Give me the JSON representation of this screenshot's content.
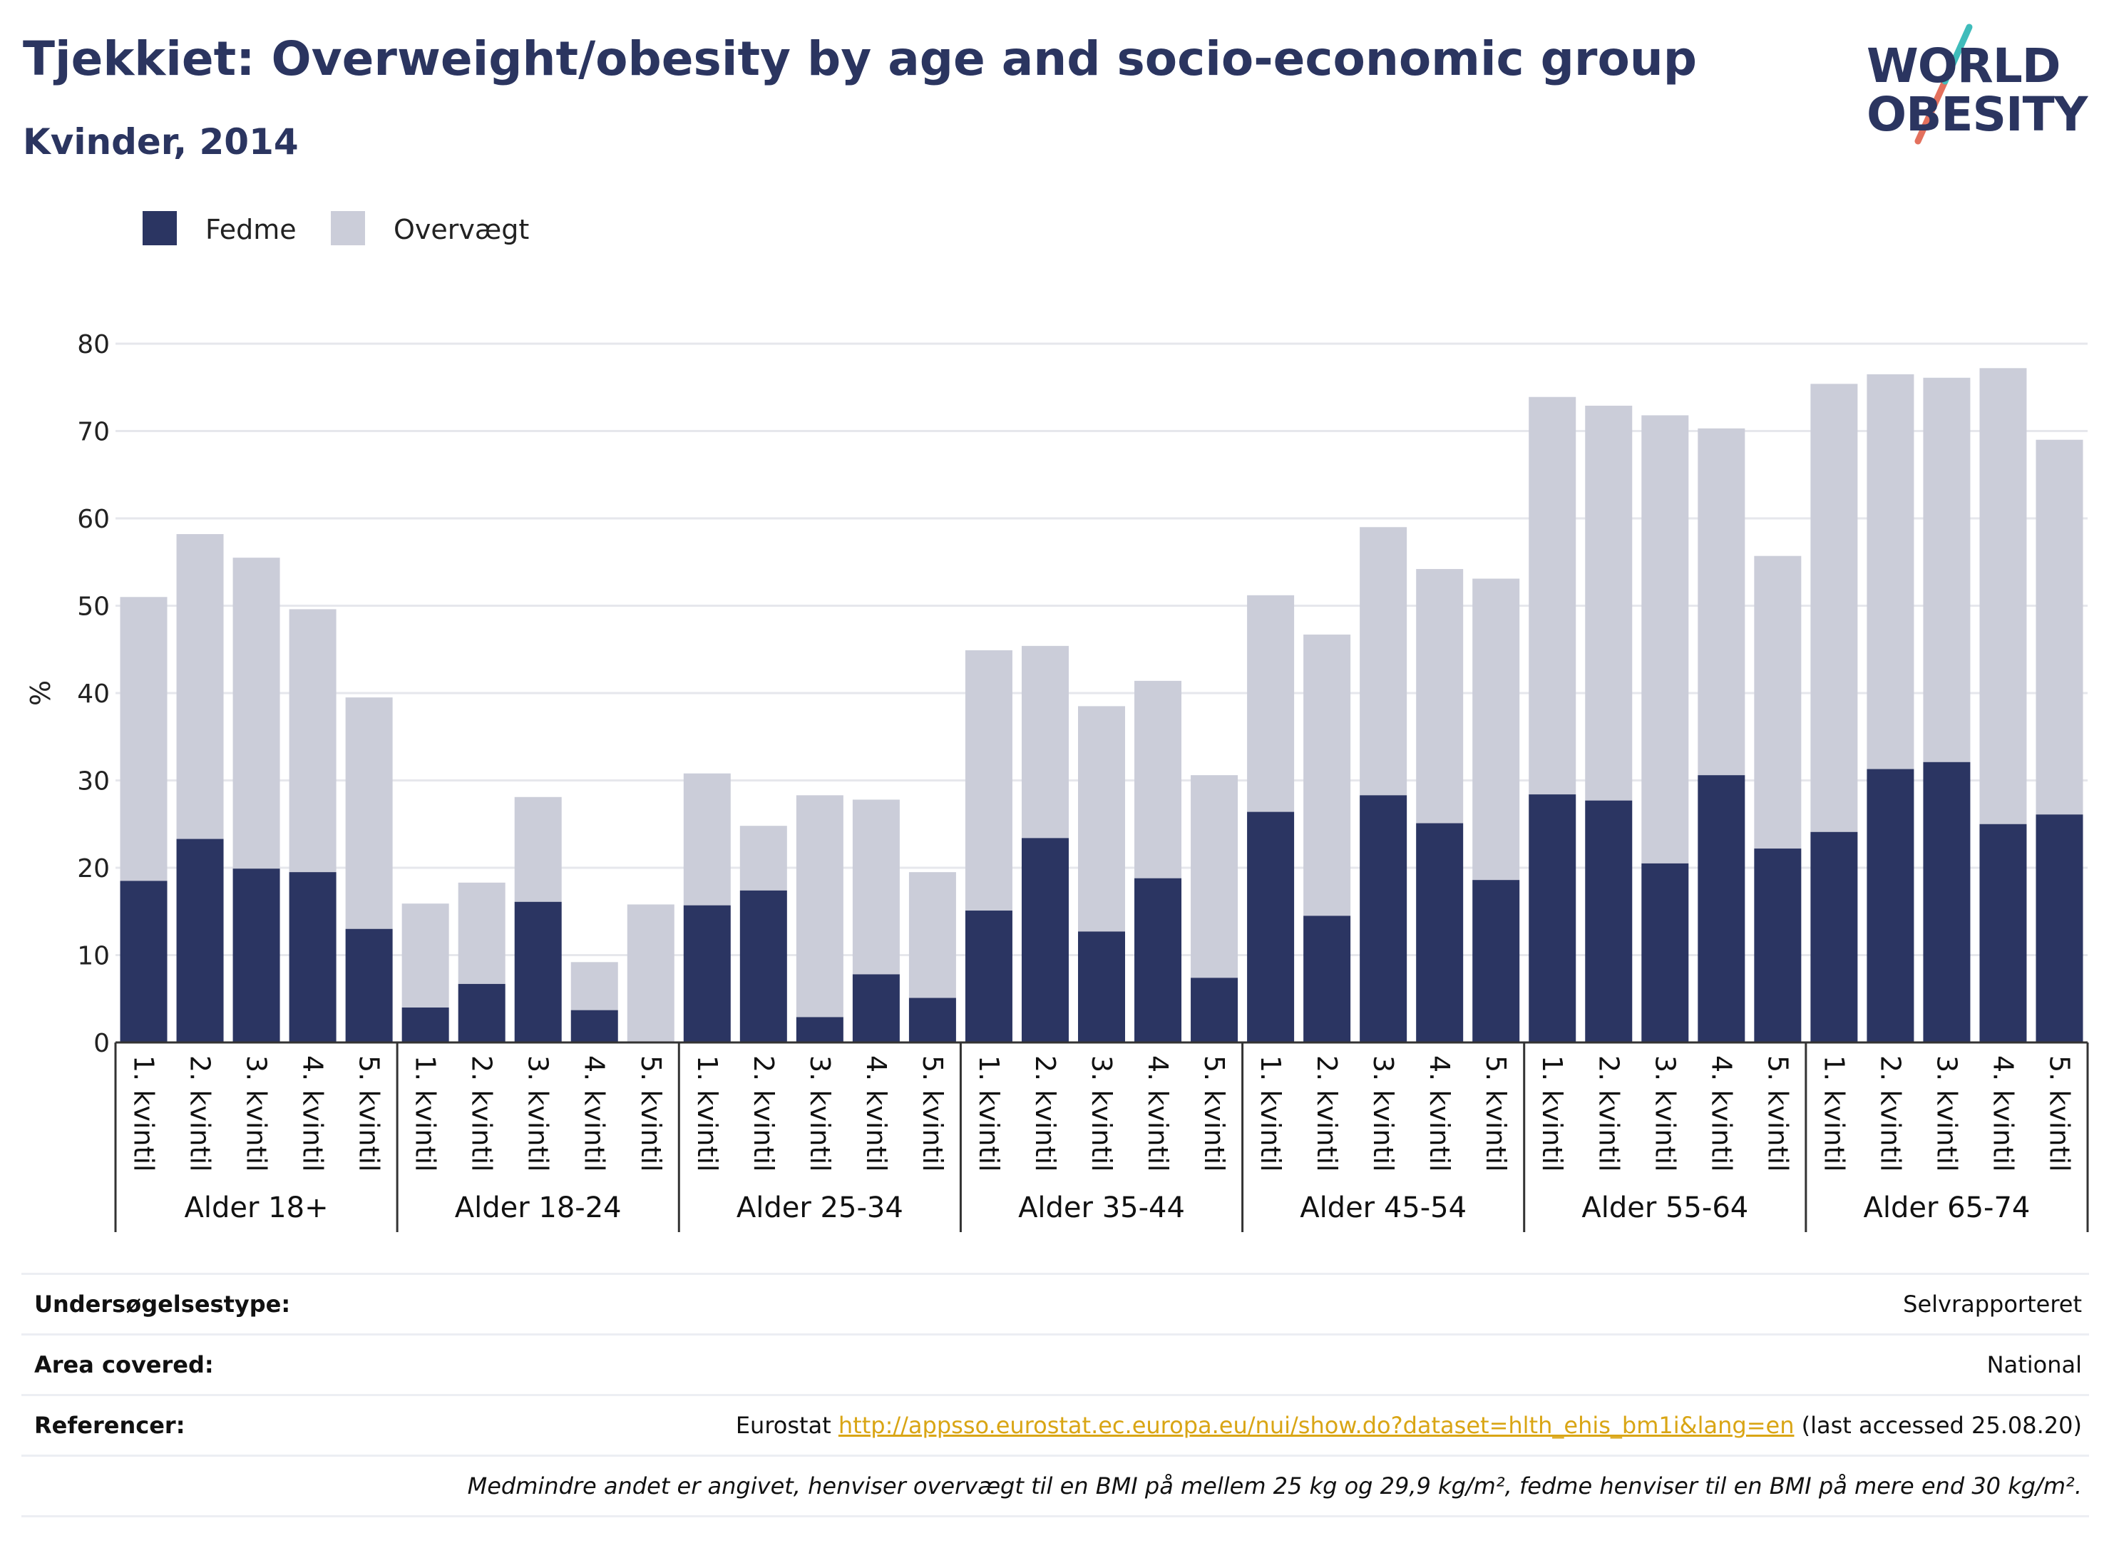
{
  "header": {
    "title": "Tjekkiet: Overweight/obesity by age and socio-economic group",
    "subtitle": "Kvinder, 2014"
  },
  "logo": {
    "line1": "WORLD",
    "line2": "OBESITY"
  },
  "colors": {
    "fedme": "#2b3562",
    "overvaegt": "#cbcdd9",
    "text": "#2b3560",
    "grid": "#e6e7ec",
    "link": "#d9a514"
  },
  "chart_data": {
    "type": "bar",
    "stacked": true,
    "ylabel": "%",
    "ylim": [
      0,
      80
    ],
    "yticks": [
      0,
      10,
      20,
      30,
      40,
      50,
      60,
      70,
      80
    ],
    "grid": true,
    "legend_position": "top-left",
    "legend": [
      "Fedme",
      "Overvægt"
    ],
    "groups": [
      {
        "label": "Alder 18+",
        "categories": [
          "1. kvintil",
          "2. kvintil",
          "3. kvintil",
          "4. kvintil",
          "5. kvintil"
        ],
        "fedme": [
          18.5,
          23.3,
          19.9,
          19.5,
          13.0
        ],
        "overvaegt": [
          32.5,
          34.9,
          35.6,
          30.1,
          26.5
        ]
      },
      {
        "label": "Alder 18-24",
        "categories": [
          "1. kvintil",
          "2. kvintil",
          "3. kvintil",
          "4. kvintil",
          "5. kvintil"
        ],
        "fedme": [
          4.0,
          6.7,
          16.1,
          3.7,
          0.0
        ],
        "overvaegt": [
          11.9,
          11.6,
          12.0,
          5.5,
          15.8
        ]
      },
      {
        "label": "Alder 25-34",
        "categories": [
          "1. kvintil",
          "2. kvintil",
          "3. kvintil",
          "4. kvintil",
          "5. kvintil"
        ],
        "fedme": [
          15.7,
          17.4,
          2.9,
          7.8,
          5.1
        ],
        "overvaegt": [
          15.1,
          7.4,
          25.4,
          20.0,
          14.4
        ]
      },
      {
        "label": "Alder 35-44",
        "categories": [
          "1. kvintil",
          "2. kvintil",
          "3. kvintil",
          "4. kvintil",
          "5. kvintil"
        ],
        "fedme": [
          15.1,
          23.4,
          12.7,
          18.8,
          7.4
        ],
        "overvaegt": [
          29.8,
          22.0,
          25.8,
          22.6,
          23.2
        ]
      },
      {
        "label": "Alder 45-54",
        "categories": [
          "1. kvintil",
          "2. kvintil",
          "3. kvintil",
          "4. kvintil",
          "5. kvintil"
        ],
        "fedme": [
          26.4,
          14.5,
          28.3,
          25.1,
          18.6
        ],
        "overvaegt": [
          24.8,
          32.2,
          30.7,
          29.1,
          34.5
        ]
      },
      {
        "label": "Alder 55-64",
        "categories": [
          "1. kvintil",
          "2. kvintil",
          "3. kvintil",
          "4. kvintil",
          "5. kvintil"
        ],
        "fedme": [
          28.4,
          27.7,
          20.5,
          30.6,
          22.2
        ],
        "overvaegt": [
          45.5,
          45.2,
          51.3,
          39.7,
          33.5
        ]
      },
      {
        "label": "Alder 65-74",
        "categories": [
          "1. kvintil",
          "2. kvintil",
          "3. kvintil",
          "4. kvintil",
          "5. kvintil"
        ],
        "fedme": [
          24.1,
          31.3,
          32.1,
          25.0,
          26.1
        ],
        "overvaegt": [
          51.3,
          45.2,
          44.0,
          52.2,
          42.9
        ]
      }
    ]
  },
  "meta": {
    "survey_label": "Undersøgelsestype:",
    "survey_value": "Selvrapporteret",
    "area_label": "Area covered:",
    "area_value": "National",
    "ref_label": "Referencer:",
    "ref_prefix": "Eurostat ",
    "ref_link": "http://appsso.eurostat.ec.europa.eu/nui/show.do?dataset=hlth_ehis_bm1i&lang=en",
    "ref_suffix": " (last accessed 25.08.20)",
    "note": "Medmindre andet er angivet, henviser overvægt til en BMI på mellem 25 kg og 29,9 kg/m², fedme henviser til en BMI på mere end 30 kg/m²."
  }
}
